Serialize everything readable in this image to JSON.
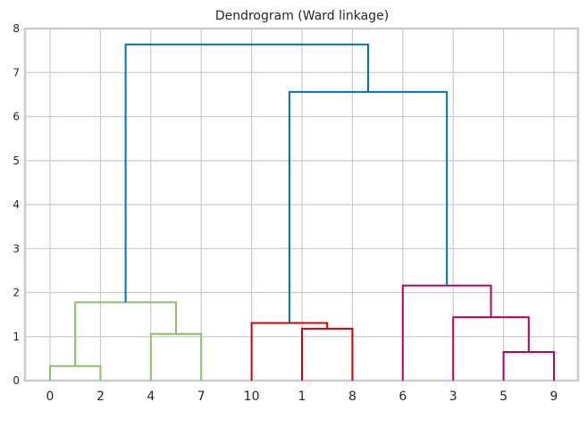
{
  "chart_data": {
    "type": "dendrogram",
    "title": "Dendrogram (Ward linkage)",
    "xlabel": "",
    "ylabel": "",
    "leaf_order": [
      "0",
      "2",
      "4",
      "7",
      "10",
      "1",
      "8",
      "6",
      "3",
      "5",
      "9"
    ],
    "ylim": [
      0,
      8
    ],
    "yticks": [
      0,
      1,
      2,
      3,
      4,
      5,
      6,
      7,
      8
    ],
    "grid": true,
    "colors": {
      "background": "#ffffff",
      "grid": "#cccccc",
      "axes_edge": "#cccccc",
      "green": "#8ec06c",
      "red": "#d40000",
      "magenta": "#b8005c",
      "blue": "#0072b2"
    },
    "links": [
      {
        "left": "0",
        "right": "2",
        "height": 0.33,
        "color": "green"
      },
      {
        "left": "4",
        "right": "7",
        "height": 1.06,
        "color": "green"
      },
      {
        "left": "C1",
        "right": "C2",
        "height": 1.78,
        "color": "green",
        "id": "C3"
      },
      {
        "left": "1",
        "right": "8",
        "height": 1.18,
        "color": "red",
        "id": "C5"
      },
      {
        "left": "10",
        "right": "C5",
        "height": 1.31,
        "color": "red",
        "id": "C6"
      },
      {
        "left": "5",
        "right": "9",
        "height": 0.65,
        "color": "magenta",
        "id": "C7"
      },
      {
        "left": "3",
        "right": "C7",
        "height": 1.44,
        "color": "magenta",
        "id": "C8"
      },
      {
        "left": "6",
        "right": "C8",
        "height": 2.16,
        "color": "magenta",
        "id": "C9"
      },
      {
        "left": "C6",
        "right": "C9",
        "height": 6.56,
        "color": "blue",
        "id": "C10"
      },
      {
        "left": "C3",
        "right": "C10",
        "height": 7.64,
        "color": "blue",
        "id": "C11"
      }
    ],
    "cluster_ids": {
      "C1": [
        "0",
        "2"
      ],
      "C2": [
        "4",
        "7"
      ]
    }
  }
}
